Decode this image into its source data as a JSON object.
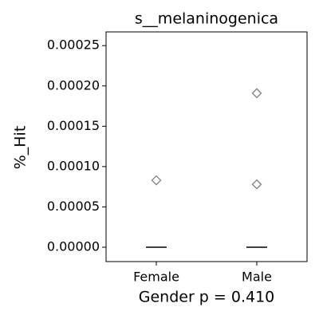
{
  "chart_data": {
    "type": "box",
    "title": "s__melaninogenica",
    "x_label": "Gender p = 0.410",
    "y_label": "%_Hit",
    "categories": [
      "Female",
      "Male"
    ],
    "boxes": [
      {
        "q1": 0,
        "median": 0,
        "q3": 0,
        "whislo": 0,
        "whishi": 0,
        "fliers": [
          8.3e-05
        ]
      },
      {
        "q1": 0,
        "median": 0,
        "q3": 0,
        "whislo": 0,
        "whishi": 0,
        "fliers": [
          0.000191,
          7.8e-05
        ]
      }
    ],
    "median_color": "#000000",
    "flier_color": "#808080",
    "ylim": [
      -1.78e-05,
      0.000267
    ],
    "yticks": [
      {
        "value": 0,
        "label": "0.00000"
      },
      {
        "value": 5e-05,
        "label": "0.00005"
      },
      {
        "value": 0.0001,
        "label": "0.00010"
      },
      {
        "value": 0.00015,
        "label": "0.00015"
      },
      {
        "value": 0.0002,
        "label": "0.00020"
      },
      {
        "value": 0.00025,
        "label": "0.00025"
      }
    ]
  }
}
